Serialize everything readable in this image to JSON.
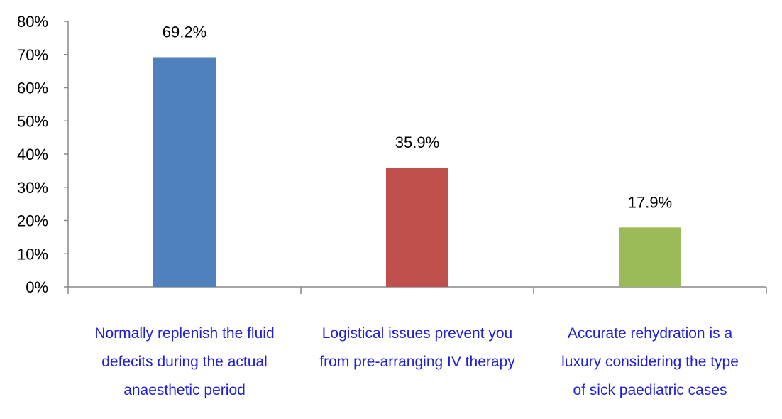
{
  "chart_data": {
    "type": "bar",
    "categories": [
      [
        "Normally replenish the fluid",
        "defecits during the actual",
        "anaesthetic period"
      ],
      [
        "Logistical issues prevent you",
        "from pre-arranging IV therapy"
      ],
      [
        "Accurate rehydration is a",
        "luxury  considering the type",
        "of sick paediatric cases"
      ]
    ],
    "values": [
      69.2,
      35.9,
      17.9
    ],
    "data_labels": [
      "69.2%",
      "35.9%",
      "17.9%"
    ],
    "colors": [
      "#4f81bd",
      "#c0504d",
      "#9bbb59"
    ],
    "ylim": [
      0,
      80
    ],
    "ytick_labels": [
      "0%",
      "10%",
      "20%",
      "30%",
      "40%",
      "50%",
      "60%",
      "70%",
      "80%"
    ],
    "grid": false,
    "legend": "none"
  }
}
